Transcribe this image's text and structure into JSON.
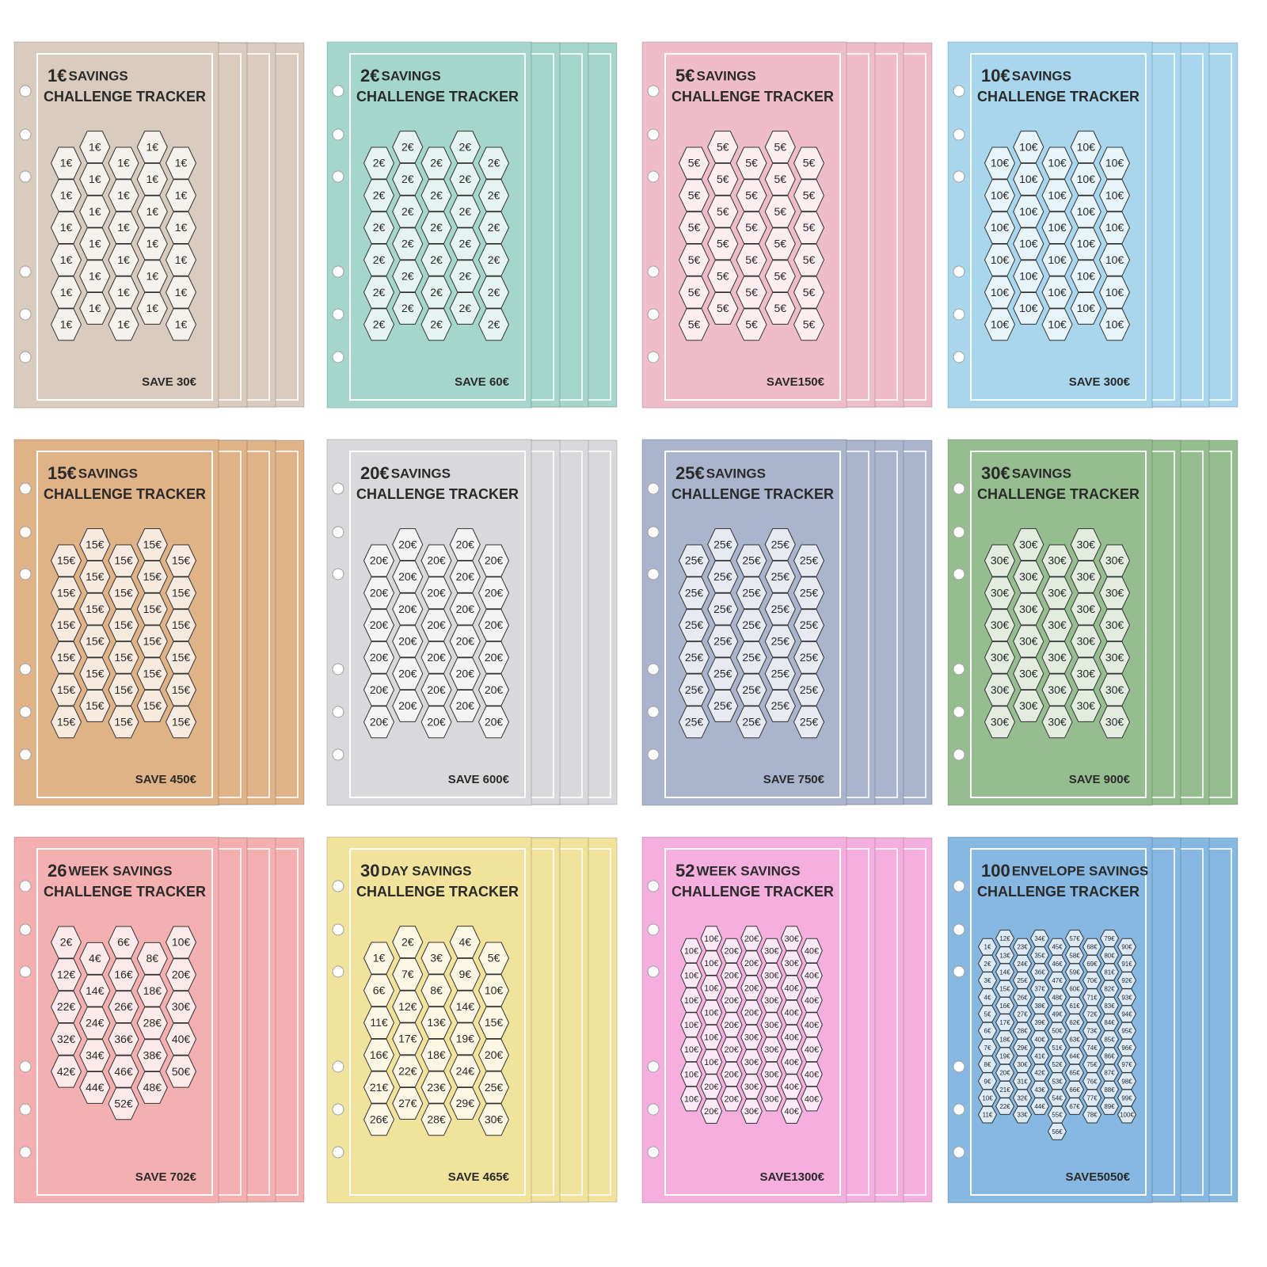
{
  "cards": [
    {
      "amount": "1€",
      "title": "SAVINGS",
      "subtitle": "CHALLENGE TRACKER",
      "save": "SAVE 30€",
      "color": "#d9cbbd",
      "cells": [
        "1€",
        "1€",
        "1€",
        "1€",
        "1€",
        "1€",
        "1€",
        "1€",
        "1€",
        "1€",
        "1€",
        "1€",
        "1€",
        "1€",
        "1€",
        "1€",
        "1€",
        "1€",
        "1€",
        "1€",
        "1€",
        "1€",
        "1€",
        "1€",
        "1€",
        "1€",
        "1€",
        "1€",
        "1€",
        "1€"
      ]
    },
    {
      "amount": "2€",
      "title": "SAVINGS",
      "subtitle": "CHALLENGE TRACKER",
      "save": "SAVE 60€",
      "color": "#a5d6cb",
      "cells": [
        "2€",
        "2€",
        "2€",
        "2€",
        "2€",
        "2€",
        "2€",
        "2€",
        "2€",
        "2€",
        "2€",
        "2€",
        "2€",
        "2€",
        "2€",
        "2€",
        "2€",
        "2€",
        "2€",
        "2€",
        "2€",
        "2€",
        "2€",
        "2€",
        "2€",
        "2€",
        "2€",
        "2€",
        "2€",
        "2€"
      ]
    },
    {
      "amount": "5€",
      "title": "SAVINGS",
      "subtitle": "CHALLENGE TRACKER",
      "save": "SAVE150€",
      "color": "#efbdca",
      "cells": [
        "5€",
        "5€",
        "5€",
        "5€",
        "5€",
        "5€",
        "5€",
        "5€",
        "5€",
        "5€",
        "5€",
        "5€",
        "5€",
        "5€",
        "5€",
        "5€",
        "5€",
        "5€",
        "5€",
        "5€",
        "5€",
        "5€",
        "5€",
        "5€",
        "5€",
        "5€",
        "5€",
        "5€",
        "5€",
        "5€"
      ]
    },
    {
      "amount": "10€",
      "title": "SAVINGS",
      "subtitle": "CHALLENGE TRACKER",
      "save": "SAVE 300€",
      "color": "#a8d6ec",
      "cells": [
        "10€",
        "10€",
        "10€",
        "10€",
        "10€",
        "10€",
        "10€",
        "10€",
        "10€",
        "10€",
        "10€",
        "10€",
        "10€",
        "10€",
        "10€",
        "10€",
        "10€",
        "10€",
        "10€",
        "10€",
        "10€",
        "10€",
        "10€",
        "10€",
        "10€",
        "10€",
        "10€",
        "10€",
        "10€",
        "10€"
      ]
    },
    {
      "amount": "15€",
      "title": "SAVINGS",
      "subtitle": "CHALLENGE TRACKER",
      "save": "SAVE 450€",
      "color": "#e0b288",
      "cells": [
        "15€",
        "15€",
        "15€",
        "15€",
        "15€",
        "15€",
        "15€",
        "15€",
        "15€",
        "15€",
        "15€",
        "15€",
        "15€",
        "15€",
        "15€",
        "15€",
        "15€",
        "15€",
        "15€",
        "15€",
        "15€",
        "15€",
        "15€",
        "15€",
        "15€",
        "15€",
        "15€",
        "15€",
        "15€",
        "15€"
      ]
    },
    {
      "amount": "20€",
      "title": "SAVINGS",
      "subtitle": "CHALLENGE TRACKER",
      "save": "SAVE 600€",
      "color": "#d9d8da",
      "cells": [
        "20€",
        "20€",
        "20€",
        "20€",
        "20€",
        "20€",
        "20€",
        "20€",
        "20€",
        "20€",
        "20€",
        "20€",
        "20€",
        "20€",
        "20€",
        "20€",
        "20€",
        "20€",
        "20€",
        "20€",
        "20€",
        "20€",
        "20€",
        "20€",
        "20€",
        "20€",
        "20€",
        "20€",
        "20€",
        "20€"
      ]
    },
    {
      "amount": "25€",
      "title": "SAVINGS",
      "subtitle": "CHALLENGE TRACKER",
      "save": "SAVE 750€",
      "color": "#aab4cc",
      "cells": [
        "25€",
        "25€",
        "25€",
        "25€",
        "25€",
        "25€",
        "25€",
        "25€",
        "25€",
        "25€",
        "25€",
        "25€",
        "25€",
        "25€",
        "25€",
        "25€",
        "25€",
        "25€",
        "25€",
        "25€",
        "25€",
        "25€",
        "25€",
        "25€",
        "25€",
        "25€",
        "25€",
        "25€",
        "25€",
        "25€"
      ]
    },
    {
      "amount": "30€",
      "title": "SAVINGS",
      "subtitle": "CHALLENGE TRACKER",
      "save": "SAVE 900€",
      "color": "#96bd8f",
      "cells": [
        "30€",
        "30€",
        "30€",
        "30€",
        "30€",
        "30€",
        "30€",
        "30€",
        "30€",
        "30€",
        "30€",
        "30€",
        "30€",
        "30€",
        "30€",
        "30€",
        "30€",
        "30€",
        "30€",
        "30€",
        "30€",
        "30€",
        "30€",
        "30€",
        "30€",
        "30€",
        "30€",
        "30€",
        "30€",
        "30€"
      ]
    },
    {
      "amount": "26",
      "title": "WEEK SAVINGS",
      "subtitle": "CHALLENGE TRACKER",
      "save": "SAVE 702€",
      "color": "#f4afb1",
      "cells": [
        "2€",
        "4€",
        "6€",
        "8€",
        "10€",
        "12€",
        "14€",
        "16€",
        "18€",
        "20€",
        "22€",
        "24€",
        "26€",
        "28€",
        "30€",
        "32€",
        "34€",
        "36€",
        "38€",
        "40€",
        "42€",
        "44€",
        "46€",
        "48€",
        "50€",
        "52€"
      ]
    },
    {
      "amount": "30",
      "title": "DAY SAVINGS",
      "subtitle": "CHALLENGE TRACKER",
      "save": "SAVE 465€",
      "color": "#f1e39b",
      "cells": [
        "1€",
        "2€",
        "3€",
        "4€",
        "5€",
        "6€",
        "7€",
        "8€",
        "9€",
        "10€",
        "11€",
        "12€",
        "13€",
        "14€",
        "15€",
        "16€",
        "17€",
        "18€",
        "19€",
        "20€",
        "21€",
        "22€",
        "23€",
        "24€",
        "25€",
        "26€",
        "27€",
        "28€",
        "29€",
        "30€"
      ]
    },
    {
      "amount": "52",
      "title": "WEEK SAVINGS",
      "subtitle": "CHALLENGE TRACKER",
      "save": "SAVE1300€",
      "color": "#f4afde",
      "cells": [
        "10€",
        "10€",
        "10€",
        "10€",
        "10€",
        "10€",
        "10€",
        "10€",
        "10€",
        "10€",
        "10€",
        "10€",
        "10€",
        "20€",
        "20€",
        "20€",
        "20€",
        "20€",
        "20€",
        "20€",
        "20€",
        "20€",
        "20€",
        "20€",
        "20€",
        "20€",
        "30€",
        "30€",
        "30€",
        "30€",
        "30€",
        "30€",
        "30€",
        "30€",
        "30€",
        "30€",
        "30€",
        "30€",
        "30€",
        "40€",
        "40€",
        "40€",
        "40€",
        "40€",
        "40€",
        "40€",
        "40€",
        "40€",
        "40€",
        "40€",
        "40€",
        "40€"
      ]
    },
    {
      "amount": "100",
      "title": "ENVELOPE SAVINGS",
      "subtitle": "CHALLENGE TRACKER",
      "save": "SAVE5050€",
      "color": "#86b8e1",
      "cells": [
        "1€",
        "2€",
        "3€",
        "4€",
        "5€",
        "6€",
        "7€",
        "8€",
        "9€",
        "10€",
        "11€",
        "12€",
        "13€",
        "14€",
        "15€",
        "16€",
        "17€",
        "18€",
        "19€",
        "20€",
        "21€",
        "22€",
        "23€",
        "24€",
        "25€",
        "26€",
        "27€",
        "28€",
        "29€",
        "30€",
        "31€",
        "32€",
        "33€",
        "34€",
        "35€",
        "36€",
        "37€",
        "38€",
        "39€",
        "40€",
        "41€",
        "42€",
        "43€",
        "44€",
        "45€",
        "46€",
        "47€",
        "48€",
        "49€",
        "50€",
        "51€",
        "52€",
        "53€",
        "54€",
        "55€",
        "56€",
        "57€",
        "58€",
        "59€",
        "60€",
        "61€",
        "62€",
        "63€",
        "64€",
        "65€",
        "66€",
        "67€",
        "68€",
        "69€",
        "70€",
        "71€",
        "72€",
        "73€",
        "74€",
        "75€",
        "76€",
        "77€",
        "78€",
        "79€",
        "80€",
        "81€",
        "82€",
        "83€",
        "84€",
        "85€",
        "86€",
        "87€",
        "88€",
        "89€",
        "90€",
        "91€",
        "92€",
        "93€",
        "94€",
        "95€",
        "96€",
        "97€",
        "98€",
        "99€",
        "100€"
      ]
    }
  ]
}
